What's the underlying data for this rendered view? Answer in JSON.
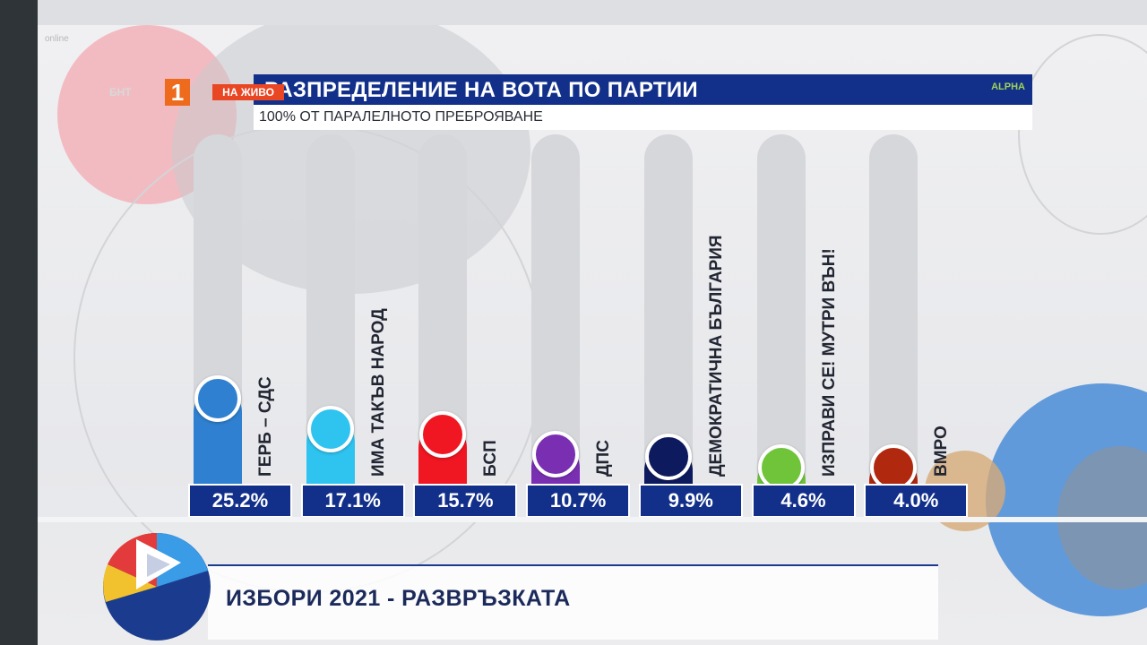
{
  "broadcast": {
    "watermark": "online",
    "channel_small": "БНТ",
    "channel_number": "1",
    "live_label": "НА ЖИВО",
    "sponsor_logo": "ALPHA"
  },
  "colors": {
    "title_bar": "#12308a",
    "value_box": "#12308a",
    "live_badge": "#e94624",
    "channel_badge": "#ee6a1c"
  },
  "chart_data": {
    "type": "bar",
    "title": "РАЗПРЕДЕЛЕНИЕ НА ВОТА ПО ПАРТИИ",
    "subtitle": "100% ОТ ПАРАЛЕЛНОТО ПРЕБРОЯВАНЕ",
    "xlabel": "",
    "ylabel": "",
    "ylim": [
      0,
      100
    ],
    "grid": false,
    "legend": "none",
    "categories": [
      "ГЕРБ – СДС",
      "ИМА ТАКЪВ НАРОД",
      "БСП",
      "ДПС",
      "ДЕМОКРАТИЧНА БЪЛГАРИЯ",
      "ИЗПРАВИ СЕ! МУТРИ ВЪН!",
      "ВМРО"
    ],
    "values": [
      25.2,
      17.1,
      15.7,
      10.7,
      9.9,
      4.6,
      4.0
    ],
    "value_labels": [
      "25.2%",
      "17.1%",
      "15.7%",
      "10.7%",
      "9.9%",
      "4.6%",
      "4.0%"
    ],
    "series_colors": [
      "#2f80d0",
      "#2fc3f0",
      "#f01622",
      "#7a2fb2",
      "#0d1a5e",
      "#6fc43a",
      "#b0280e"
    ]
  },
  "lower_third": {
    "text": "ИЗБОРИ 2021 - РАЗВРЪЗКАТА"
  }
}
